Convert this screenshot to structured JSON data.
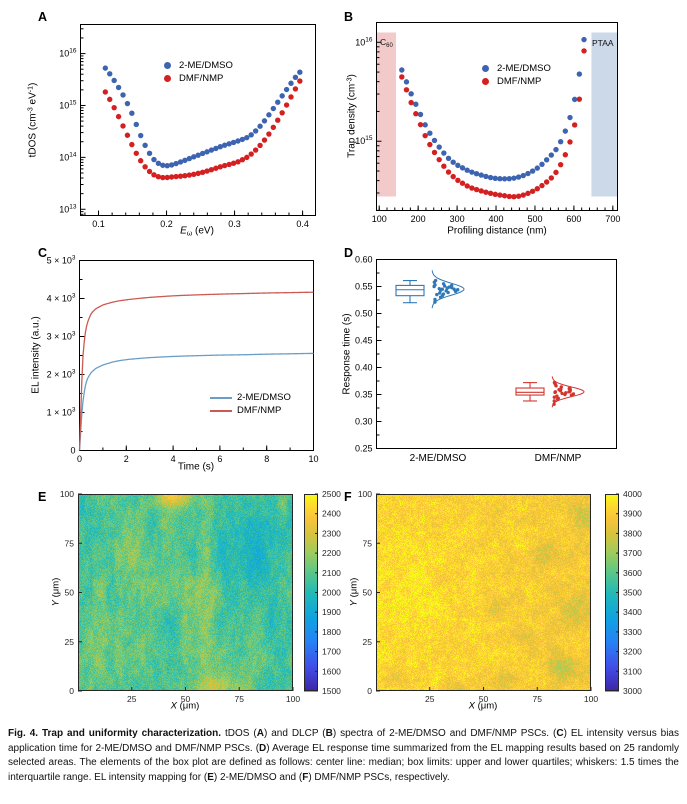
{
  "colors": {
    "series_blue": "#3c64b0",
    "series_red": "#d42020",
    "line_blue": "#6b9ec6",
    "line_red": "#cb5a50",
    "box_blue": "#2e78b8",
    "box_red": "#d2352e",
    "c60_fill": "#f2caca",
    "ptaa_fill": "#ccd9e8",
    "frame": "#000000",
    "heat_frame": "#262626"
  },
  "panels": {
    "a": {
      "letter": "A",
      "ylabel_runs": [
        {
          "t": "tDOS (cm"
        },
        {
          "t": "-3",
          "sup": true
        },
        {
          "t": " eV"
        },
        {
          "t": "-1",
          "sup": true
        },
        {
          "t": ")"
        }
      ],
      "xlabel_runs": [
        {
          "t": "E",
          "i": true
        },
        {
          "t": "ω",
          "sub": true
        },
        {
          "t": " (eV)"
        }
      ],
      "legend": {
        "items": [
          {
            "label": "2-ME/DMSO",
            "swatch": "series_blue"
          },
          {
            "label": "DMF/NMP",
            "swatch": "series_red"
          }
        ]
      }
    },
    "b": {
      "letter": "B",
      "ylabel_runs": [
        {
          "t": "Trap density (cm"
        },
        {
          "t": "-3",
          "sup": true
        },
        {
          "t": ")"
        }
      ],
      "xlabel_runs": [
        {
          "t": "Profiling distance (nm)"
        }
      ],
      "c60_runs": [
        {
          "t": "C"
        },
        {
          "t": "60",
          "sub": true
        }
      ],
      "ptaa_runs": [
        {
          "t": "PTAA"
        }
      ],
      "legend": {
        "items": [
          {
            "label": "2-ME/DMSO",
            "swatch": "series_blue"
          },
          {
            "label": "DMF/NMP",
            "swatch": "series_red"
          }
        ]
      }
    },
    "c": {
      "letter": "C",
      "ylabel_runs": [
        {
          "t": "EL intensity (a.u.)"
        }
      ],
      "xlabel_runs": [
        {
          "t": "Time (s)"
        }
      ],
      "legend": {
        "items": [
          {
            "label": "2-ME/DMSO",
            "swatch": "line_blue"
          },
          {
            "label": "DMF/NMP",
            "swatch": "line_red"
          }
        ]
      }
    },
    "d": {
      "letter": "D",
      "ylabel_runs": [
        {
          "t": "Response time (s)"
        }
      ]
    },
    "e": {
      "letter": "E",
      "ylabel_runs": [
        {
          "t": "Y",
          "i": true
        },
        {
          "t": " (μm)"
        }
      ],
      "xlabel_runs": [
        {
          "t": "X",
          "i": true
        },
        {
          "t": " (μm)"
        }
      ]
    },
    "f": {
      "letter": "F",
      "ylabel_runs": [
        {
          "t": "Y",
          "i": true
        },
        {
          "t": " (μm)"
        }
      ],
      "xlabel_runs": [
        {
          "t": "X",
          "i": true
        },
        {
          "t": " (μm)"
        }
      ]
    }
  },
  "chart_data": [
    {
      "panel": "A",
      "type": "scatter",
      "title": "",
      "xlabel": "E_w (eV)",
      "ylabel": "tDOS (cm-3 eV-1)",
      "xlim": [
        0.0735,
        0.419
      ],
      "x_ticks": [
        0.1,
        0.2,
        0.3,
        0.4
      ],
      "x_minor_step": 0.02,
      "ylog_lim": [
        12.88,
        16.56
      ],
      "y_tick_exps": [
        13,
        14,
        15,
        16
      ],
      "marker_r": 2.7,
      "sampling": {
        "start": 0.11,
        "end": 0.3985,
        "step": 0.0065
      },
      "series": [
        {
          "name": "2-ME/DMSO",
          "color": "series_blue",
          "x": [
            0.11,
            0.118,
            0.126,
            0.134,
            0.142,
            0.15,
            0.158,
            0.166,
            0.174,
            0.182,
            0.19,
            0.198,
            0.206,
            0.214,
            0.222,
            0.234,
            0.246,
            0.258,
            0.27,
            0.282,
            0.294,
            0.306,
            0.318,
            0.326,
            0.334,
            0.342,
            0.35,
            0.358,
            0.366,
            0.374,
            0.382,
            0.39,
            0.398
          ],
          "logy": [
            15.72,
            15.58,
            15.42,
            15.25,
            15.05,
            14.82,
            14.55,
            14.3,
            14.1,
            13.95,
            13.87,
            13.84,
            13.85,
            13.88,
            13.92,
            13.98,
            14.04,
            14.1,
            14.16,
            14.22,
            14.27,
            14.32,
            14.38,
            14.45,
            14.55,
            14.67,
            14.81,
            14.96,
            15.11,
            15.26,
            15.41,
            15.55,
            15.66
          ]
        },
        {
          "name": "DMF/NMP",
          "color": "series_red",
          "x": [
            0.11,
            0.118,
            0.126,
            0.134,
            0.142,
            0.15,
            0.158,
            0.166,
            0.174,
            0.182,
            0.19,
            0.198,
            0.206,
            0.214,
            0.222,
            0.234,
            0.246,
            0.258,
            0.27,
            0.282,
            0.294,
            0.306,
            0.318,
            0.326,
            0.334,
            0.342,
            0.35,
            0.358,
            0.366,
            0.374,
            0.382,
            0.39,
            0.398
          ],
          "logy": [
            15.26,
            15.08,
            14.88,
            14.66,
            14.44,
            14.22,
            14.02,
            13.86,
            13.74,
            13.66,
            13.62,
            13.61,
            13.62,
            13.63,
            13.64,
            13.66,
            13.69,
            13.73,
            13.78,
            13.83,
            13.87,
            13.92,
            14.0,
            14.08,
            14.18,
            14.3,
            14.44,
            14.6,
            14.77,
            14.95,
            15.14,
            15.33,
            15.5
          ]
        }
      ]
    },
    {
      "panel": "B",
      "type": "scatter",
      "xlabel": "Profiling distance (nm)",
      "ylabel": "Trap density (cm-3)",
      "xlim": [
        93,
        712
      ],
      "x_ticks": [
        100,
        200,
        300,
        400,
        500,
        600,
        700
      ],
      "x_minor_step": 20,
      "ylog_lim": [
        14.3,
        16.2
      ],
      "y_tick_exps": [
        15,
        16
      ],
      "marker_r": 2.7,
      "sampling": {
        "start": 158,
        "end": 628,
        "step": 12
      },
      "regions": [
        {
          "name": "C60",
          "x0": 93,
          "x1": 143,
          "fill": "c60_fill"
        },
        {
          "name": "PTAA",
          "x0": 645,
          "x1": 712,
          "fill": "ptaa_fill"
        }
      ],
      "series": [
        {
          "name": "2-ME/DMSO",
          "color": "series_blue",
          "x": [
            158,
            170,
            185,
            200,
            220,
            240,
            260,
            280,
            300,
            330,
            360,
            390,
            420,
            450,
            480,
            510,
            540,
            560,
            580,
            595,
            605,
            615,
            622,
            628
          ],
          "logy": [
            15.72,
            15.6,
            15.45,
            15.32,
            15.15,
            15.02,
            14.91,
            14.82,
            14.76,
            14.7,
            14.66,
            14.63,
            14.62,
            14.63,
            14.67,
            14.74,
            14.85,
            14.95,
            15.12,
            15.3,
            15.48,
            15.7,
            15.9,
            16.07
          ]
        },
        {
          "name": "DMF/NMP",
          "color": "series_red",
          "x": [
            158,
            170,
            185,
            200,
            220,
            240,
            260,
            280,
            300,
            330,
            360,
            390,
            420,
            450,
            480,
            510,
            540,
            560,
            580,
            595,
            605,
            615,
            622,
            628
          ],
          "logy": [
            15.65,
            15.52,
            15.36,
            15.22,
            15.04,
            14.9,
            14.78,
            14.68,
            14.61,
            14.54,
            14.5,
            14.47,
            14.45,
            14.44,
            14.47,
            14.53,
            14.62,
            14.72,
            14.88,
            15.05,
            15.22,
            15.45,
            15.72,
            15.98
          ]
        }
      ]
    },
    {
      "panel": "C",
      "type": "line",
      "xlabel": "Time (s)",
      "ylabel": "EL intensity (a.u.)",
      "xlim": [
        0,
        10
      ],
      "x_ticks": [
        0,
        2,
        4,
        6,
        8,
        10
      ],
      "x_minor_step": 1,
      "ylim": [
        0,
        5000
      ],
      "y_ticks": [
        0,
        1000,
        2000,
        3000,
        4000,
        5000
      ],
      "y_minor_step": 500,
      "series": [
        {
          "name": "2-ME/DMSO",
          "color": "line_blue",
          "x": [
            0,
            0.08,
            0.15,
            0.25,
            0.35,
            0.5,
            0.7,
            1.0,
            1.5,
            2,
            2.5,
            3,
            4,
            5,
            6,
            7,
            8,
            9,
            10
          ],
          "y": [
            0,
            800,
            1300,
            1700,
            1900,
            2050,
            2160,
            2250,
            2340,
            2390,
            2420,
            2445,
            2475,
            2495,
            2510,
            2520,
            2535,
            2545,
            2555
          ]
        },
        {
          "name": "DMF/NMP",
          "color": "line_red",
          "x": [
            0,
            0.08,
            0.15,
            0.25,
            0.35,
            0.5,
            0.7,
            1.0,
            1.5,
            2,
            2.5,
            3,
            4,
            5,
            6,
            7,
            8,
            9,
            10
          ],
          "y": [
            0,
            1500,
            2500,
            3100,
            3380,
            3600,
            3730,
            3830,
            3915,
            3965,
            4000,
            4030,
            4070,
            4095,
            4115,
            4130,
            4145,
            4155,
            4165
          ]
        }
      ]
    },
    {
      "panel": "D",
      "type": "box",
      "ylabel": "Response time (s)",
      "ylim": [
        0.25,
        0.6
      ],
      "y_ticks": [
        0.25,
        0.3,
        0.35,
        0.4,
        0.45,
        0.5,
        0.55,
        0.6
      ],
      "y_minor_step": 0.025,
      "categories": [
        "2-ME/DMSO",
        "DMF/NMP"
      ],
      "groups": [
        {
          "name": "2-ME/DMSO",
          "color": "box_blue",
          "box": {
            "whisker_low": 0.52,
            "q1": 0.533,
            "median": 0.544,
            "q3": 0.552,
            "whisker_high": 0.561
          },
          "kde": {
            "mu": 0.545,
            "sigma": 0.011
          },
          "points": [
            0.521,
            0.526,
            0.53,
            0.533,
            0.535,
            0.536,
            0.538,
            0.539,
            0.541,
            0.542,
            0.543,
            0.544,
            0.545,
            0.545,
            0.546,
            0.547,
            0.548,
            0.549,
            0.55,
            0.551,
            0.552,
            0.553,
            0.555,
            0.558,
            0.561
          ]
        },
        {
          "name": "DMF/NMP",
          "color": "box_red",
          "box": {
            "whisker_low": 0.338,
            "q1": 0.349,
            "median": 0.354,
            "q3": 0.362,
            "whisker_high": 0.372
          },
          "kde": {
            "mu": 0.355,
            "sigma": 0.009
          },
          "points": [
            0.332,
            0.338,
            0.341,
            0.343,
            0.345,
            0.347,
            0.349,
            0.35,
            0.351,
            0.352,
            0.353,
            0.354,
            0.355,
            0.355,
            0.356,
            0.357,
            0.358,
            0.359,
            0.36,
            0.361,
            0.362,
            0.364,
            0.366,
            0.369,
            0.372
          ]
        }
      ]
    },
    {
      "panel": "E",
      "type": "heatmap",
      "xlabel": "X (μm)",
      "ylabel": "Y (μm)",
      "xlim": [
        0,
        100
      ],
      "ylim": [
        0,
        100
      ],
      "x_ticks": [
        25,
        50,
        75,
        100
      ],
      "y_ticks": [
        0,
        25,
        50,
        75,
        100
      ],
      "colormap": "parula",
      "colorbar": {
        "min": 1500,
        "max": 2500,
        "ticks": [
          1500,
          1600,
          1700,
          1800,
          1900,
          2000,
          2100,
          2200,
          2300,
          2400,
          2500
        ]
      },
      "texture": {
        "seed": 7,
        "base": 2085,
        "white": 62,
        "octaves": [
          {
            "fx": 20,
            "fy": 6,
            "amp": 50
          },
          {
            "fx": 50,
            "fy": 20,
            "amp": 42
          }
        ],
        "blobs": [
          {
            "x": 45,
            "y": 99,
            "sx": 6,
            "sy": 4,
            "amp": 280
          },
          {
            "x": 63,
            "y": 1,
            "sx": 8,
            "sy": 5,
            "amp": 220
          },
          {
            "x": 60,
            "y": 42,
            "sx": 3.5,
            "sy": 25,
            "amp": 85
          },
          {
            "x": 10,
            "y": 25,
            "sx": 4,
            "sy": 14,
            "amp": 75
          },
          {
            "x": 22,
            "y": 75,
            "sx": 5,
            "sy": 12,
            "amp": 70
          },
          {
            "x": 33,
            "y": 25,
            "sx": 4,
            "sy": 10,
            "amp": 65
          },
          {
            "x": 45,
            "y": 60,
            "sx": 4,
            "sy": 9,
            "amp": 55
          },
          {
            "x": 83,
            "y": 70,
            "sx": 13,
            "sy": 15,
            "amp": -95
          },
          {
            "x": 93,
            "y": 35,
            "sx": 9,
            "sy": 10,
            "amp": -60
          },
          {
            "x": 70,
            "y": 85,
            "sx": 6,
            "sy": 8,
            "amp": -55
          },
          {
            "x": 3,
            "y": 50,
            "sx": 3,
            "sy": 30,
            "amp": -55
          }
        ]
      }
    },
    {
      "panel": "F",
      "type": "heatmap",
      "xlabel": "X (μm)",
      "ylabel": "Y (μm)",
      "xlim": [
        0,
        100
      ],
      "ylim": [
        0,
        100
      ],
      "x_ticks": [
        25,
        50,
        75,
        100
      ],
      "y_ticks": [
        0,
        25,
        50,
        75,
        100
      ],
      "colormap": "parula",
      "colorbar": {
        "min": 3000,
        "max": 4000,
        "ticks": [
          3000,
          3100,
          3200,
          3300,
          3400,
          3500,
          3600,
          3700,
          3800,
          3900,
          4000
        ]
      },
      "texture": {
        "seed": 13,
        "base": 3915,
        "white": 62,
        "octaves": [
          {
            "fx": 18,
            "fy": 15,
            "amp": 30
          },
          {
            "fx": 60,
            "fy": 50,
            "amp": 34
          }
        ],
        "blobs": [
          {
            "x": 15,
            "y": 50,
            "sx": 12,
            "sy": 30,
            "amp": 45
          },
          {
            "x": 105,
            "y": 50,
            "sx": 25,
            "sy": 60,
            "amp": -45
          },
          {
            "x": 86,
            "y": 12,
            "sx": 5,
            "sy": 4.5,
            "amp": -110
          },
          {
            "x": 92,
            "y": 40,
            "sx": 4.5,
            "sy": 5,
            "amp": -95
          },
          {
            "x": 80,
            "y": 70,
            "sx": 5,
            "sy": 4.5,
            "amp": -90
          },
          {
            "x": 96,
            "y": 88,
            "sx": 4,
            "sy": 4.5,
            "amp": -95
          },
          {
            "x": 60,
            "y": 5,
            "sx": 5,
            "sy": 3.5,
            "amp": -75
          },
          {
            "x": 36,
            "y": 2,
            "sx": 4,
            "sy": 2.5,
            "amp": -75
          },
          {
            "x": 56,
            "y": 42,
            "sx": 3.5,
            "sy": 4,
            "amp": -65
          },
          {
            "x": 8,
            "y": 6,
            "sx": 3.5,
            "sy": 3.5,
            "amp": -75
          },
          {
            "x": 68,
            "y": 28,
            "sx": 3.5,
            "sy": 3.5,
            "amp": -55
          }
        ]
      }
    }
  ],
  "caption": {
    "runs": [
      {
        "t": "Fig. 4. Trap and uniformity characterization.",
        "b": true
      },
      {
        "t": " tDOS ("
      },
      {
        "t": "A",
        "b": true
      },
      {
        "t": ") and DLCP ("
      },
      {
        "t": "B",
        "b": true
      },
      {
        "t": ") spectra of 2-ME/DMSO and DMF/NMP PSCs. ("
      },
      {
        "t": "C",
        "b": true
      },
      {
        "t": ") EL intensity versus bias application time for 2-ME/DMSO and DMF/NMP PSCs. ("
      },
      {
        "t": "D",
        "b": true
      },
      {
        "t": ") Average EL response time summarized from the EL mapping results based on 25 randomly selected areas. The elements of the box plot are defined as follows: center line: median; box limits: upper and lower quartiles; whiskers: 1.5 times the interquartile range. EL intensity mapping for ("
      },
      {
        "t": "E",
        "b": true
      },
      {
        "t": ") 2-ME/DMSO and ("
      },
      {
        "t": "F",
        "b": true
      },
      {
        "t": ") DMF/NMP PSCs, respectively."
      }
    ]
  }
}
